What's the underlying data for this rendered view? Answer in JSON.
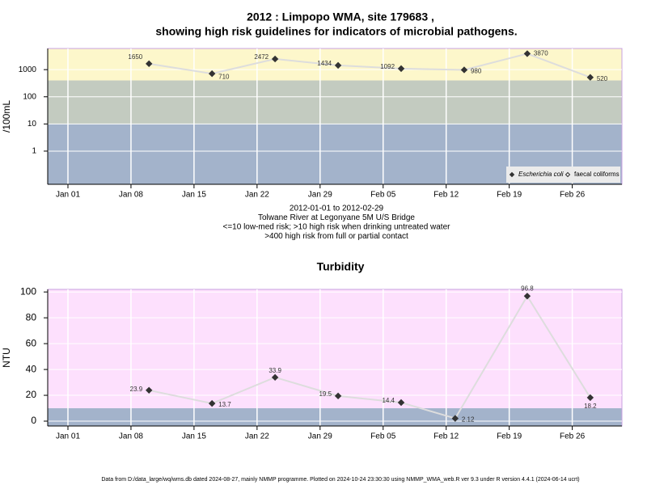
{
  "chart_data": [
    {
      "type": "line",
      "title": "2012 : Limpopo WMA, site 179683 ,",
      "subtitle": "showing high risk guidelines for indicators of microbial pathogens.",
      "ylabel": "/100mL",
      "log_scale": true,
      "grid": true,
      "ylim": [
        0.06,
        6000
      ],
      "yticks": [
        1,
        10,
        100,
        1000
      ],
      "xlim": [
        "2012-01-01",
        "2012-02-29"
      ],
      "xticks": [
        {
          "value": "2012-01-01",
          "label": "Jan 01"
        },
        {
          "value": "2012-01-08",
          "label": "Jan 08"
        },
        {
          "value": "2012-01-15",
          "label": "Jan 15"
        },
        {
          "value": "2012-01-22",
          "label": "Jan 22"
        },
        {
          "value": "2012-01-29",
          "label": "Jan 29"
        },
        {
          "value": "2012-02-05",
          "label": "Feb 05"
        },
        {
          "value": "2012-02-12",
          "label": "Feb 12"
        },
        {
          "value": "2012-02-19",
          "label": "Feb 19"
        },
        {
          "value": "2012-02-26",
          "label": "Feb 26"
        }
      ],
      "thresholds": [
        10,
        400
      ],
      "band_colors": [
        "#a3b3cb",
        "#c3cbc0",
        "#fdf7cb"
      ],
      "line_color": "#dddddd",
      "series": [
        {
          "name": "Escherichia coli",
          "marker": "filled",
          "color": "#333333",
          "x": [
            "2012-01-10",
            "2012-01-17",
            "2012-01-24",
            "2012-01-31",
            "2012-02-07",
            "2012-02-14",
            "2012-02-21",
            "2012-02-28"
          ],
          "values": [
            1650,
            710,
            2472,
            1434,
            1092,
            980,
            3870,
            520
          ]
        },
        {
          "name": "faecal coliforms",
          "marker": "open",
          "color": "#333333",
          "x": [],
          "values": []
        }
      ],
      "legend": "bottom-right",
      "notes": [
        "2012-01-01 to 2012-02-29",
        "Tolwane River at Legonyane 5M U/S Bridge",
        "<=10 low-med risk; >10 high risk when drinking untreated water",
        ">400 high risk from full or partial contact"
      ]
    },
    {
      "type": "line",
      "title": "Turbidity",
      "ylabel": "NTU",
      "log_scale": false,
      "grid": true,
      "ylim": [
        -3.75,
        102
      ],
      "yticks": [
        0,
        20,
        40,
        60,
        80,
        100
      ],
      "xlim": [
        "2012-01-01",
        "2012-02-29"
      ],
      "xticks": [
        {
          "value": "2012-01-01",
          "label": "Jan 01"
        },
        {
          "value": "2012-01-08",
          "label": "Jan 08"
        },
        {
          "value": "2012-01-15",
          "label": "Jan 15"
        },
        {
          "value": "2012-01-22",
          "label": "Jan 22"
        },
        {
          "value": "2012-01-29",
          "label": "Jan 29"
        },
        {
          "value": "2012-02-05",
          "label": "Feb 05"
        },
        {
          "value": "2012-02-12",
          "label": "Feb 12"
        },
        {
          "value": "2012-02-19",
          "label": "Feb 19"
        },
        {
          "value": "2012-02-26",
          "label": "Feb 26"
        }
      ],
      "thresholds": [
        10
      ],
      "band_colors": [
        "#a3b3cb",
        "#fde0fd"
      ],
      "line_color": "#dddddd",
      "series": [
        {
          "marker": "filled",
          "color": "#333333",
          "x": [
            "2012-01-10",
            "2012-01-17",
            "2012-01-24",
            "2012-01-31",
            "2012-02-07",
            "2012-02-13",
            "2012-02-21",
            "2012-02-28"
          ],
          "values": [
            23.9,
            13.7,
            33.9,
            19.5,
            14.4,
            2.12,
            96.8,
            18.2
          ]
        }
      ]
    }
  ],
  "footer": "Data from D:/data_large/wq/wms.db dated 2024-08-27, mainly NMMP programme. Plotted on 2024-10-24 23:30:30 using NMMP_WMA_web.R ver 9.3 under R version 4.4.1 (2024-06-14 ucrt)"
}
